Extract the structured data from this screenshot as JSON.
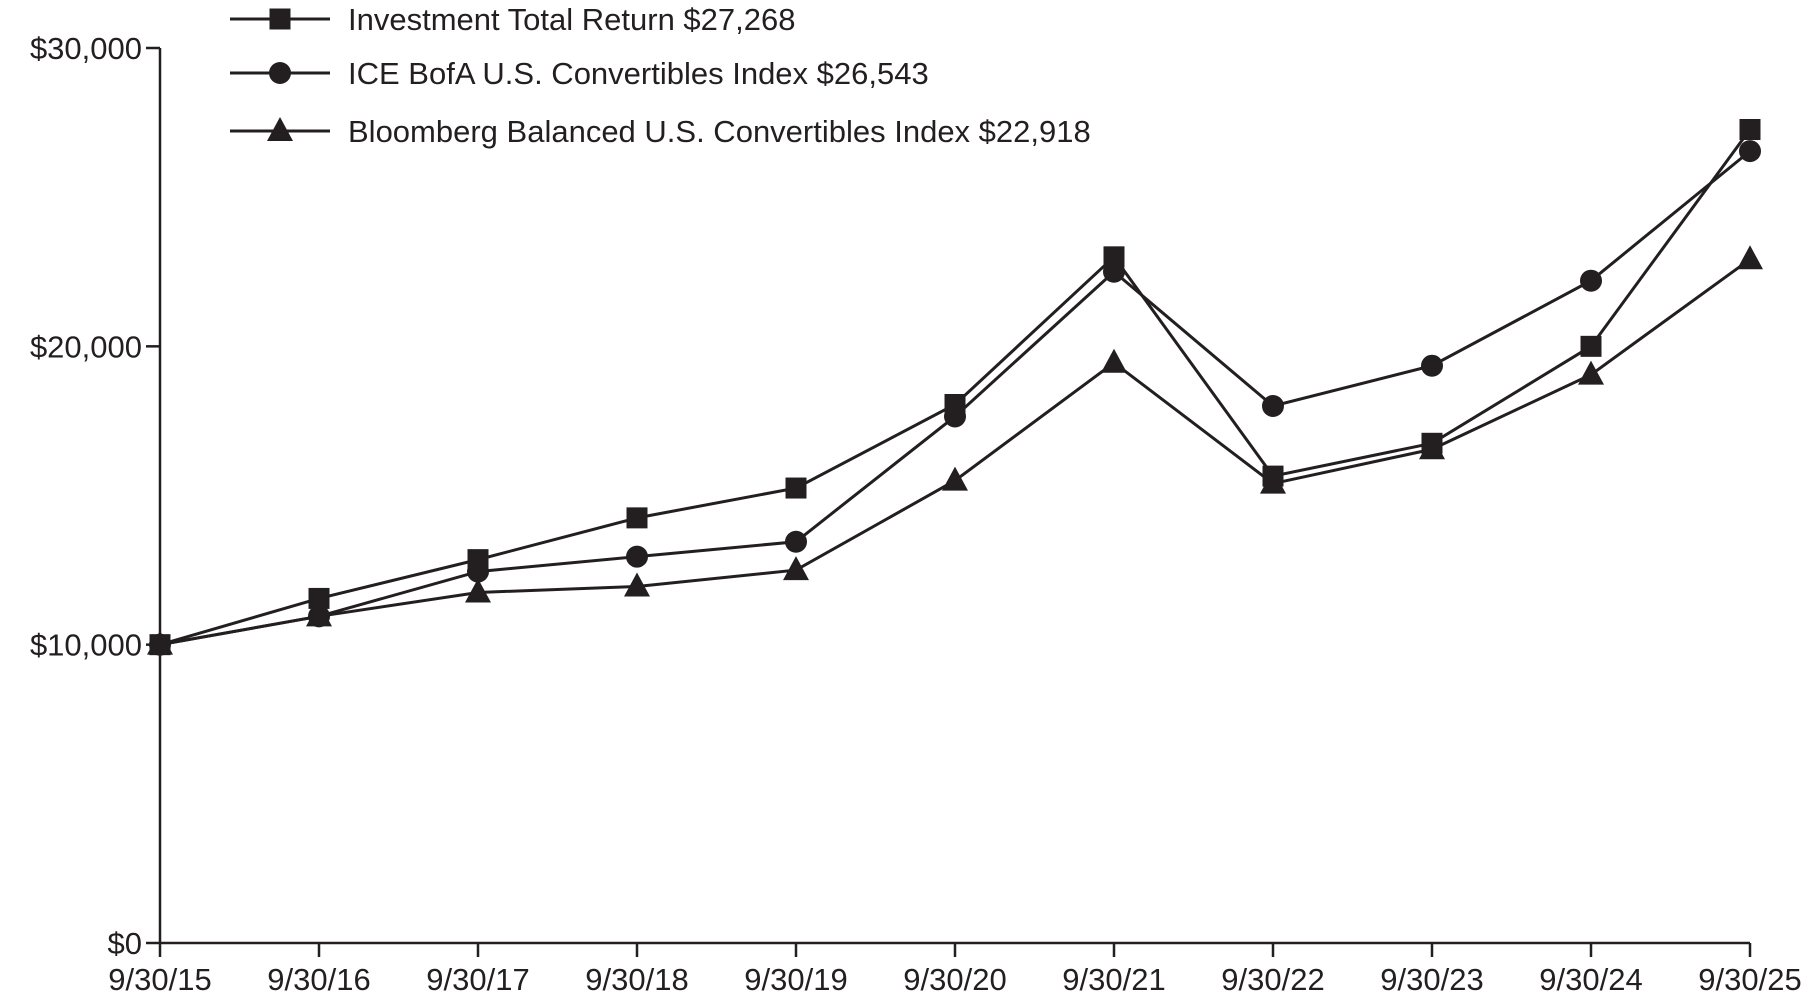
{
  "chart_data": {
    "type": "line",
    "title": "",
    "xlabel": "",
    "ylabel": "",
    "categories": [
      "9/30/15",
      "9/30/16",
      "9/30/17",
      "9/30/18",
      "9/30/19",
      "9/30/20",
      "9/30/21",
      "9/30/22",
      "9/30/23",
      "9/30/24",
      "9/30/25"
    ],
    "ylim": [
      0,
      30000
    ],
    "y_ticks": [
      {
        "value": 0,
        "label": "$0"
      },
      {
        "value": 10000,
        "label": "$10,000"
      },
      {
        "value": 20000,
        "label": "$20,000"
      },
      {
        "value": 30000,
        "label": "$30,000"
      }
    ],
    "grid": false,
    "legend_position": "top-left",
    "series": [
      {
        "name": "Investment Total Return $27,268",
        "marker": "square",
        "values": [
          10000,
          11550,
          12850,
          14250,
          15250,
          18050,
          23000,
          15650,
          16750,
          20000,
          27268
        ]
      },
      {
        "name": "ICE BofA U.S. Convertibles Index $26,543",
        "marker": "circle",
        "values": [
          10000,
          10950,
          12450,
          12950,
          13450,
          17650,
          22500,
          18000,
          19350,
          22200,
          26543
        ]
      },
      {
        "name": "Bloomberg Balanced U.S. Convertibles Index $22,918",
        "marker": "triangle",
        "values": [
          10000,
          10950,
          11750,
          11950,
          12500,
          15500,
          19450,
          15400,
          16550,
          19050,
          22918
        ]
      }
    ]
  }
}
